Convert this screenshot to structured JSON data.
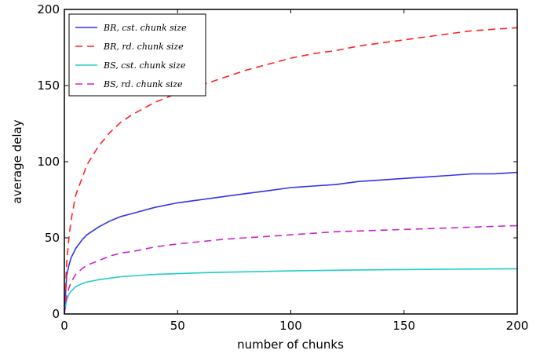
{
  "chart_data": {
    "type": "line",
    "title": "",
    "xlabel": "number of chunks",
    "ylabel": "average delay",
    "xlim": [
      0,
      200
    ],
    "ylim": [
      0,
      200
    ],
    "xticks": [
      "0",
      "50",
      "100",
      "150",
      "200"
    ],
    "yticks": [
      "0",
      "50",
      "100",
      "150",
      "200"
    ],
    "grid": false,
    "legend_position": "top-left",
    "x": [
      1,
      2,
      3,
      5,
      8,
      10,
      15,
      20,
      25,
      30,
      40,
      50,
      60,
      70,
      80,
      90,
      100,
      110,
      120,
      130,
      140,
      150,
      160,
      170,
      180,
      190,
      200
    ],
    "series": [
      {
        "name": "BR, cst. chunk size",
        "color": "#3333ee",
        "dash": "solid",
        "values": [
          25,
          32,
          37,
          43,
          49,
          52,
          57,
          61,
          64,
          66,
          70,
          73,
          75,
          77,
          79,
          81,
          83,
          84,
          85,
          87,
          88,
          89,
          90,
          91,
          92,
          92,
          93
        ]
      },
      {
        "name": "BR, rd. chunk size",
        "color": "#ff2222",
        "dash": "dashed",
        "values": [
          33,
          50,
          62,
          78,
          90,
          98,
          110,
          119,
          126,
          131,
          139,
          145,
          150,
          155,
          160,
          164,
          168,
          171,
          173,
          176,
          178,
          180,
          182,
          184,
          186,
          187,
          188
        ]
      },
      {
        "name": "BS, cst. chunk size",
        "color": "#22cccc",
        "dash": "solid",
        "values": [
          9,
          13,
          15,
          18,
          20,
          21,
          22.5,
          23.5,
          24.5,
          25,
          26,
          26.5,
          27,
          27.4,
          27.7,
          28,
          28.3,
          28.5,
          28.7,
          28.9,
          29,
          29.2,
          29.3,
          29.4,
          29.5,
          29.6,
          29.7
        ]
      },
      {
        "name": "BS, rd. chunk size",
        "color": "#cc22cc",
        "dash": "dashed",
        "values": [
          12,
          17,
          21,
          26,
          30,
          32,
          35,
          38,
          40,
          41,
          44,
          46,
          47.5,
          49,
          50,
          51,
          52,
          53,
          54,
          54.5,
          55,
          55.5,
          56,
          56.5,
          57,
          57.5,
          58
        ]
      }
    ]
  }
}
